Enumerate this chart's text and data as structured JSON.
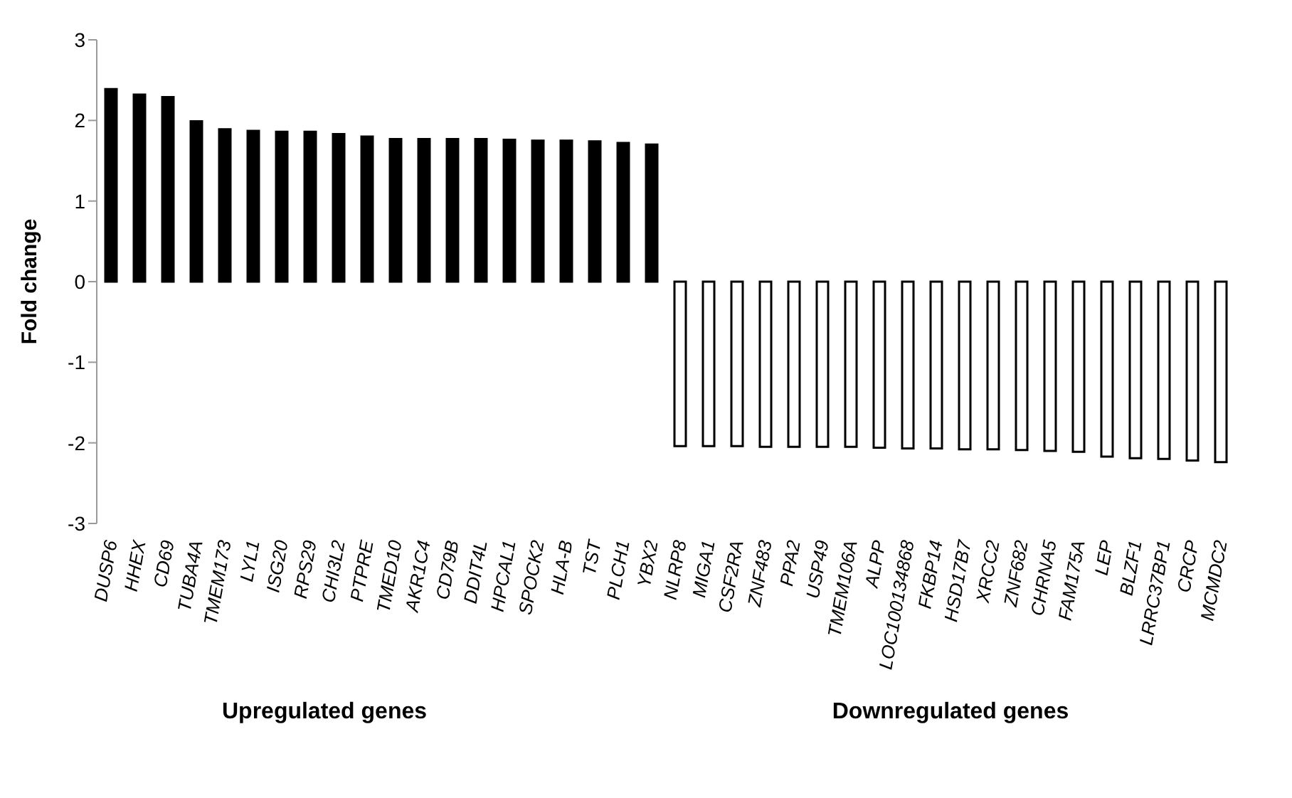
{
  "chart_data": {
    "type": "bar",
    "ylabel": "Fold change",
    "categories": [
      "DUSP6",
      "HHEX",
      "CD69",
      "TUBA4A",
      "TMEM173",
      "LYL1",
      "ISG20",
      "RPS29",
      "CHI3L2",
      "PTPRE",
      "TMED10",
      "AKR1C4",
      "CD79B",
      "DDIT4L",
      "HPCAL1",
      "SPOCK2",
      "HLA-B",
      "TST",
      "PLCH1",
      "YBX2",
      "NLRP8",
      "MIGA1",
      "CSF2RA",
      "ZNF483",
      "PPA2",
      "USP49",
      "TMEM106A",
      "ALPP",
      "LOC100134868",
      "FKBP14",
      "HSD17B7",
      "XRCC2",
      "ZNF682",
      "CHRNA5",
      "FAM175A",
      "LEP",
      "BLZF1",
      "LRRC37BP1",
      "CRCP",
      "MCMDC2"
    ],
    "values": [
      2.39,
      2.32,
      2.29,
      1.99,
      1.89,
      1.87,
      1.86,
      1.86,
      1.83,
      1.8,
      1.77,
      1.77,
      1.77,
      1.77,
      1.76,
      1.75,
      1.75,
      1.74,
      1.72,
      1.7,
      -2.04,
      -2.04,
      -2.04,
      -2.05,
      -2.05,
      -2.05,
      -2.05,
      -2.06,
      -2.07,
      -2.07,
      -2.08,
      -2.08,
      -2.09,
      -2.1,
      -2.11,
      -2.17,
      -2.19,
      -2.2,
      -2.22,
      -2.24
    ],
    "colors": [
      "#000000",
      "#000000",
      "#000000",
      "#000000",
      "#000000",
      "#000000",
      "#000000",
      "#000000",
      "#000000",
      "#000000",
      "#000000",
      "#000000",
      "#000000",
      "#000000",
      "#000000",
      "#000000",
      "#000000",
      "#000000",
      "#000000",
      "#000000",
      "#ffffff",
      "#ffffff",
      "#ffffff",
      "#ffffff",
      "#ffffff",
      "#ffffff",
      "#ffffff",
      "#ffffff",
      "#ffffff",
      "#ffffff",
      "#ffffff",
      "#ffffff",
      "#ffffff",
      "#ffffff",
      "#ffffff",
      "#ffffff",
      "#ffffff",
      "#ffffff",
      "#ffffff",
      "#ffffff"
    ],
    "ylim": [
      -3,
      3
    ],
    "yticks": [
      -3,
      -2,
      -1,
      0,
      1,
      2,
      3
    ],
    "grid": false,
    "legend": false,
    "annotations": [
      "Upregulated genes",
      "Downregulated genes"
    ]
  }
}
